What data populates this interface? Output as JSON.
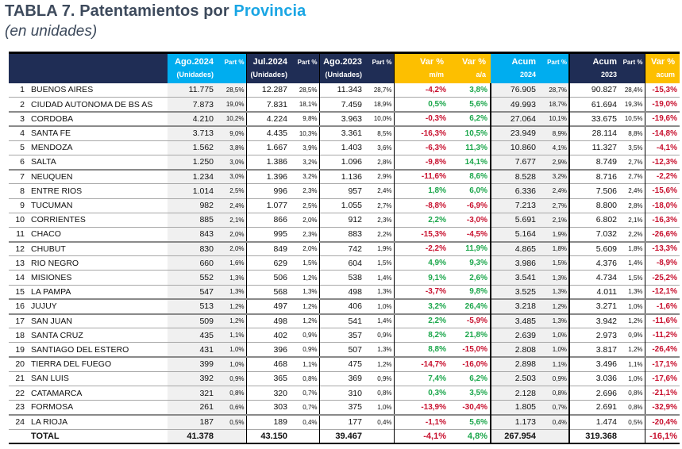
{
  "title": {
    "prefix": "TABLA 7. Patentamientos por ",
    "highlight": "Provincia"
  },
  "subtitle": "(en unidades)",
  "headers": {
    "ago2024": {
      "main": "Ago.2024",
      "sub": "(Unidades)"
    },
    "jul2024": {
      "main": "Jul.2024",
      "sub": "(Unidades)"
    },
    "ago2023": {
      "main": "Ago.2023",
      "sub": "(Unidades)"
    },
    "part": "Part %",
    "var_mm": {
      "main": "Var %",
      "sub": "m/m"
    },
    "var_aa": {
      "main": "Var %",
      "sub": "a/a"
    },
    "acum2024": {
      "main": "Acum",
      "sub": "2024"
    },
    "acum2023": {
      "main": "Acum",
      "sub": "2023"
    },
    "var_acum": {
      "main": "Var %",
      "sub": "acum"
    }
  },
  "colors": {
    "navy": "#1f2d55",
    "cyan": "#00adef",
    "amber": "#fdbf00",
    "negative": "#c8102e",
    "positive": "#1aa64a"
  },
  "rows": [
    {
      "n": "1",
      "name": "BUENOS AIRES",
      "ago24": "11.775",
      "p1": "28,5%",
      "jul24": "12.287",
      "p2": "28,5%",
      "ago23": "11.343",
      "p3": "28,7%",
      "mm": "-4,2%",
      "aa": "3,8%",
      "ac24": "76.905",
      "p4": "28,7%",
      "ac23": "90.827",
      "p5": "28,4%",
      "vac": "-15,3%"
    },
    {
      "n": "2",
      "name": "CIUDAD AUTONOMA DE BS AS",
      "ago24": "7.873",
      "p1": "19,0%",
      "jul24": "7.831",
      "p2": "18,1%",
      "ago23": "7.459",
      "p3": "18,9%",
      "mm": "0,5%",
      "aa": "5,6%",
      "ac24": "49.993",
      "p4": "18,7%",
      "ac23": "61.694",
      "p5": "19,3%",
      "vac": "-19,0%"
    },
    {
      "n": "3",
      "name": "CORDOBA",
      "ago24": "4.210",
      "p1": "10,2%",
      "jul24": "4.224",
      "p2": "9,8%",
      "ago23": "3.963",
      "p3": "10,0%",
      "mm": "-0,3%",
      "aa": "6,2%",
      "ac24": "27.064",
      "p4": "10,1%",
      "ac23": "33.675",
      "p5": "10,5%",
      "vac": "-19,6%"
    },
    {
      "n": "4",
      "name": "SANTA FE",
      "ago24": "3.713",
      "p1": "9,0%",
      "jul24": "4.435",
      "p2": "10,3%",
      "ago23": "3.361",
      "p3": "8,5%",
      "mm": "-16,3%",
      "aa": "10,5%",
      "ac24": "23.949",
      "p4": "8,9%",
      "ac23": "28.114",
      "p5": "8,8%",
      "vac": "-14,8%"
    },
    {
      "n": "5",
      "name": "MENDOZA",
      "ago24": "1.562",
      "p1": "3,8%",
      "jul24": "1.667",
      "p2": "3,9%",
      "ago23": "1.403",
      "p3": "3,6%",
      "mm": "-6,3%",
      "aa": "11,3%",
      "ac24": "10.860",
      "p4": "4,1%",
      "ac23": "11.327",
      "p5": "3,5%",
      "vac": "-4,1%"
    },
    {
      "n": "6",
      "name": "SALTA",
      "ago24": "1.250",
      "p1": "3,0%",
      "jul24": "1.386",
      "p2": "3,2%",
      "ago23": "1.096",
      "p3": "2,8%",
      "mm": "-9,8%",
      "aa": "14,1%",
      "ac24": "7.677",
      "p4": "2,9%",
      "ac23": "8.749",
      "p5": "2,7%",
      "vac": "-12,3%"
    },
    {
      "n": "7",
      "name": "NEUQUEN",
      "ago24": "1.234",
      "p1": "3,0%",
      "jul24": "1.396",
      "p2": "3,2%",
      "ago23": "1.136",
      "p3": "2,9%",
      "mm": "-11,6%",
      "aa": "8,6%",
      "ac24": "8.528",
      "p4": "3,2%",
      "ac23": "8.716",
      "p5": "2,7%",
      "vac": "-2,2%"
    },
    {
      "n": "8",
      "name": "ENTRE RIOS",
      "ago24": "1.014",
      "p1": "2,5%",
      "jul24": "996",
      "p2": "2,3%",
      "ago23": "957",
      "p3": "2,4%",
      "mm": "1,8%",
      "aa": "6,0%",
      "ac24": "6.336",
      "p4": "2,4%",
      "ac23": "7.506",
      "p5": "2,4%",
      "vac": "-15,6%"
    },
    {
      "n": "9",
      "name": "TUCUMAN",
      "ago24": "982",
      "p1": "2,4%",
      "jul24": "1.077",
      "p2": "2,5%",
      "ago23": "1.055",
      "p3": "2,7%",
      "mm": "-8,8%",
      "aa": "-6,9%",
      "ac24": "7.213",
      "p4": "2,7%",
      "ac23": "8.800",
      "p5": "2,8%",
      "vac": "-18,0%"
    },
    {
      "n": "10",
      "name": "CORRIENTES",
      "ago24": "885",
      "p1": "2,1%",
      "jul24": "866",
      "p2": "2,0%",
      "ago23": "912",
      "p3": "2,3%",
      "mm": "2,2%",
      "aa": "-3,0%",
      "ac24": "5.691",
      "p4": "2,1%",
      "ac23": "6.802",
      "p5": "2,1%",
      "vac": "-16,3%"
    },
    {
      "n": "11",
      "name": "CHACO",
      "ago24": "843",
      "p1": "2,0%",
      "jul24": "995",
      "p2": "2,3%",
      "ago23": "883",
      "p3": "2,2%",
      "mm": "-15,3%",
      "aa": "-4,5%",
      "ac24": "5.164",
      "p4": "1,9%",
      "ac23": "7.032",
      "p5": "2,2%",
      "vac": "-26,6%"
    },
    {
      "n": "12",
      "name": "CHUBUT",
      "ago24": "830",
      "p1": "2,0%",
      "jul24": "849",
      "p2": "2,0%",
      "ago23": "742",
      "p3": "1,9%",
      "mm": "-2,2%",
      "aa": "11,9%",
      "ac24": "4.865",
      "p4": "1,8%",
      "ac23": "5.609",
      "p5": "1,8%",
      "vac": "-13,3%"
    },
    {
      "n": "13",
      "name": "RIO NEGRO",
      "ago24": "660",
      "p1": "1,6%",
      "jul24": "629",
      "p2": "1,5%",
      "ago23": "604",
      "p3": "1,5%",
      "mm": "4,9%",
      "aa": "9,3%",
      "ac24": "3.986",
      "p4": "1,5%",
      "ac23": "4.376",
      "p5": "1,4%",
      "vac": "-8,9%"
    },
    {
      "n": "14",
      "name": "MISIONES",
      "ago24": "552",
      "p1": "1,3%",
      "jul24": "506",
      "p2": "1,2%",
      "ago23": "538",
      "p3": "1,4%",
      "mm": "9,1%",
      "aa": "2,6%",
      "ac24": "3.541",
      "p4": "1,3%",
      "ac23": "4.734",
      "p5": "1,5%",
      "vac": "-25,2%"
    },
    {
      "n": "15",
      "name": "LA PAMPA",
      "ago24": "547",
      "p1": "1,3%",
      "jul24": "568",
      "p2": "1,3%",
      "ago23": "498",
      "p3": "1,3%",
      "mm": "-3,7%",
      "aa": "9,8%",
      "ac24": "3.525",
      "p4": "1,3%",
      "ac23": "4.011",
      "p5": "1,3%",
      "vac": "-12,1%"
    },
    {
      "n": "16",
      "name": "JUJUY",
      "ago24": "513",
      "p1": "1,2%",
      "jul24": "497",
      "p2": "1,2%",
      "ago23": "406",
      "p3": "1,0%",
      "mm": "3,2%",
      "aa": "26,4%",
      "ac24": "3.218",
      "p4": "1,2%",
      "ac23": "3.271",
      "p5": "1,0%",
      "vac": "-1,6%"
    },
    {
      "n": "17",
      "name": "SAN JUAN",
      "ago24": "509",
      "p1": "1,2%",
      "jul24": "498",
      "p2": "1,2%",
      "ago23": "541",
      "p3": "1,4%",
      "mm": "2,2%",
      "aa": "-5,9%",
      "ac24": "3.485",
      "p4": "1,3%",
      "ac23": "3.942",
      "p5": "1,2%",
      "vac": "-11,6%"
    },
    {
      "n": "18",
      "name": "SANTA CRUZ",
      "ago24": "435",
      "p1": "1,1%",
      "jul24": "402",
      "p2": "0,9%",
      "ago23": "357",
      "p3": "0,9%",
      "mm": "8,2%",
      "aa": "21,8%",
      "ac24": "2.639",
      "p4": "1,0%",
      "ac23": "2.973",
      "p5": "0,9%",
      "vac": "-11,2%"
    },
    {
      "n": "19",
      "name": "SANTIAGO DEL ESTERO",
      "ago24": "431",
      "p1": "1,0%",
      "jul24": "396",
      "p2": "0,9%",
      "ago23": "507",
      "p3": "1,3%",
      "mm": "8,8%",
      "aa": "-15,0%",
      "ac24": "2.808",
      "p4": "1,0%",
      "ac23": "3.817",
      "p5": "1,2%",
      "vac": "-26,4%"
    },
    {
      "n": "20",
      "name": "TIERRA DEL FUEGO",
      "ago24": "399",
      "p1": "1,0%",
      "jul24": "468",
      "p2": "1,1%",
      "ago23": "475",
      "p3": "1,2%",
      "mm": "-14,7%",
      "aa": "-16,0%",
      "ac24": "2.898",
      "p4": "1,1%",
      "ac23": "3.496",
      "p5": "1,1%",
      "vac": "-17,1%"
    },
    {
      "n": "21",
      "name": "SAN LUIS",
      "ago24": "392",
      "p1": "0,9%",
      "jul24": "365",
      "p2": "0,8%",
      "ago23": "369",
      "p3": "0,9%",
      "mm": "7,4%",
      "aa": "6,2%",
      "ac24": "2.503",
      "p4": "0,9%",
      "ac23": "3.036",
      "p5": "1,0%",
      "vac": "-17,6%"
    },
    {
      "n": "22",
      "name": "CATAMARCA",
      "ago24": "321",
      "p1": "0,8%",
      "jul24": "320",
      "p2": "0,7%",
      "ago23": "310",
      "p3": "0,8%",
      "mm": "0,3%",
      "aa": "3,5%",
      "ac24": "2.128",
      "p4": "0,8%",
      "ac23": "2.696",
      "p5": "0,8%",
      "vac": "-21,1%"
    },
    {
      "n": "23",
      "name": "FORMOSA",
      "ago24": "261",
      "p1": "0,6%",
      "jul24": "303",
      "p2": "0,7%",
      "ago23": "375",
      "p3": "1,0%",
      "mm": "-13,9%",
      "aa": "-30,4%",
      "ac24": "1.805",
      "p4": "0,7%",
      "ac23": "2.691",
      "p5": "0,8%",
      "vac": "-32,9%"
    },
    {
      "n": "24",
      "name": "LA RIOJA",
      "ago24": "187",
      "p1": "0,5%",
      "jul24": "189",
      "p2": "0,4%",
      "ago23": "177",
      "p3": "0,4%",
      "mm": "-1,1%",
      "aa": "5,6%",
      "ac24": "1.173",
      "p4": "0,4%",
      "ac23": "1.474",
      "p5": "0,5%",
      "vac": "-20,4%"
    }
  ],
  "total": {
    "label": "TOTAL",
    "ago24": "41.378",
    "jul24": "43.150",
    "ago23": "39.467",
    "mm": "-4,1%",
    "aa": "4,8%",
    "ac24": "267.954",
    "ac23": "319.368",
    "vac": "-16,1%"
  }
}
